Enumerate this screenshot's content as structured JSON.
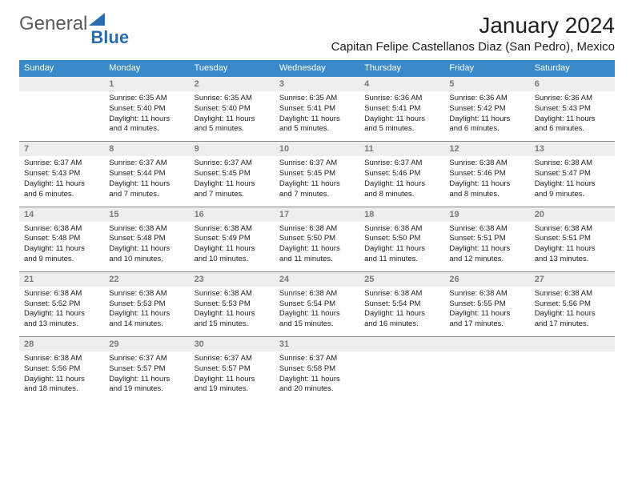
{
  "logo": {
    "text1": "General",
    "text2": "Blue",
    "triangle_color": "#2a6cb0"
  },
  "header": {
    "month": "January 2024",
    "location": "Capitan Felipe Castellanos Diaz (San Pedro), Mexico"
  },
  "calendar": {
    "header_bg": "#3a8ac9",
    "header_fg": "#ffffff",
    "daynum_bg": "#eeeeee",
    "daynum_fg": "#7a7a7a",
    "days": [
      "Sunday",
      "Monday",
      "Tuesday",
      "Wednesday",
      "Thursday",
      "Friday",
      "Saturday"
    ],
    "weeks": [
      [
        null,
        {
          "n": "1",
          "sr": "6:35 AM",
          "ss": "5:40 PM",
          "dl": "11 hours and 4 minutes."
        },
        {
          "n": "2",
          "sr": "6:35 AM",
          "ss": "5:40 PM",
          "dl": "11 hours and 5 minutes."
        },
        {
          "n": "3",
          "sr": "6:35 AM",
          "ss": "5:41 PM",
          "dl": "11 hours and 5 minutes."
        },
        {
          "n": "4",
          "sr": "6:36 AM",
          "ss": "5:41 PM",
          "dl": "11 hours and 5 minutes."
        },
        {
          "n": "5",
          "sr": "6:36 AM",
          "ss": "5:42 PM",
          "dl": "11 hours and 6 minutes."
        },
        {
          "n": "6",
          "sr": "6:36 AM",
          "ss": "5:43 PM",
          "dl": "11 hours and 6 minutes."
        }
      ],
      [
        {
          "n": "7",
          "sr": "6:37 AM",
          "ss": "5:43 PM",
          "dl": "11 hours and 6 minutes."
        },
        {
          "n": "8",
          "sr": "6:37 AM",
          "ss": "5:44 PM",
          "dl": "11 hours and 7 minutes."
        },
        {
          "n": "9",
          "sr": "6:37 AM",
          "ss": "5:45 PM",
          "dl": "11 hours and 7 minutes."
        },
        {
          "n": "10",
          "sr": "6:37 AM",
          "ss": "5:45 PM",
          "dl": "11 hours and 7 minutes."
        },
        {
          "n": "11",
          "sr": "6:37 AM",
          "ss": "5:46 PM",
          "dl": "11 hours and 8 minutes."
        },
        {
          "n": "12",
          "sr": "6:38 AM",
          "ss": "5:46 PM",
          "dl": "11 hours and 8 minutes."
        },
        {
          "n": "13",
          "sr": "6:38 AM",
          "ss": "5:47 PM",
          "dl": "11 hours and 9 minutes."
        }
      ],
      [
        {
          "n": "14",
          "sr": "6:38 AM",
          "ss": "5:48 PM",
          "dl": "11 hours and 9 minutes."
        },
        {
          "n": "15",
          "sr": "6:38 AM",
          "ss": "5:48 PM",
          "dl": "11 hours and 10 minutes."
        },
        {
          "n": "16",
          "sr": "6:38 AM",
          "ss": "5:49 PM",
          "dl": "11 hours and 10 minutes."
        },
        {
          "n": "17",
          "sr": "6:38 AM",
          "ss": "5:50 PM",
          "dl": "11 hours and 11 minutes."
        },
        {
          "n": "18",
          "sr": "6:38 AM",
          "ss": "5:50 PM",
          "dl": "11 hours and 11 minutes."
        },
        {
          "n": "19",
          "sr": "6:38 AM",
          "ss": "5:51 PM",
          "dl": "11 hours and 12 minutes."
        },
        {
          "n": "20",
          "sr": "6:38 AM",
          "ss": "5:51 PM",
          "dl": "11 hours and 13 minutes."
        }
      ],
      [
        {
          "n": "21",
          "sr": "6:38 AM",
          "ss": "5:52 PM",
          "dl": "11 hours and 13 minutes."
        },
        {
          "n": "22",
          "sr": "6:38 AM",
          "ss": "5:53 PM",
          "dl": "11 hours and 14 minutes."
        },
        {
          "n": "23",
          "sr": "6:38 AM",
          "ss": "5:53 PM",
          "dl": "11 hours and 15 minutes."
        },
        {
          "n": "24",
          "sr": "6:38 AM",
          "ss": "5:54 PM",
          "dl": "11 hours and 15 minutes."
        },
        {
          "n": "25",
          "sr": "6:38 AM",
          "ss": "5:54 PM",
          "dl": "11 hours and 16 minutes."
        },
        {
          "n": "26",
          "sr": "6:38 AM",
          "ss": "5:55 PM",
          "dl": "11 hours and 17 minutes."
        },
        {
          "n": "27",
          "sr": "6:38 AM",
          "ss": "5:56 PM",
          "dl": "11 hours and 17 minutes."
        }
      ],
      [
        {
          "n": "28",
          "sr": "6:38 AM",
          "ss": "5:56 PM",
          "dl": "11 hours and 18 minutes."
        },
        {
          "n": "29",
          "sr": "6:37 AM",
          "ss": "5:57 PM",
          "dl": "11 hours and 19 minutes."
        },
        {
          "n": "30",
          "sr": "6:37 AM",
          "ss": "5:57 PM",
          "dl": "11 hours and 19 minutes."
        },
        {
          "n": "31",
          "sr": "6:37 AM",
          "ss": "5:58 PM",
          "dl": "11 hours and 20 minutes."
        },
        null,
        null,
        null
      ]
    ],
    "labels": {
      "sunrise": "Sunrise:",
      "sunset": "Sunset:",
      "daylight": "Daylight:"
    }
  }
}
